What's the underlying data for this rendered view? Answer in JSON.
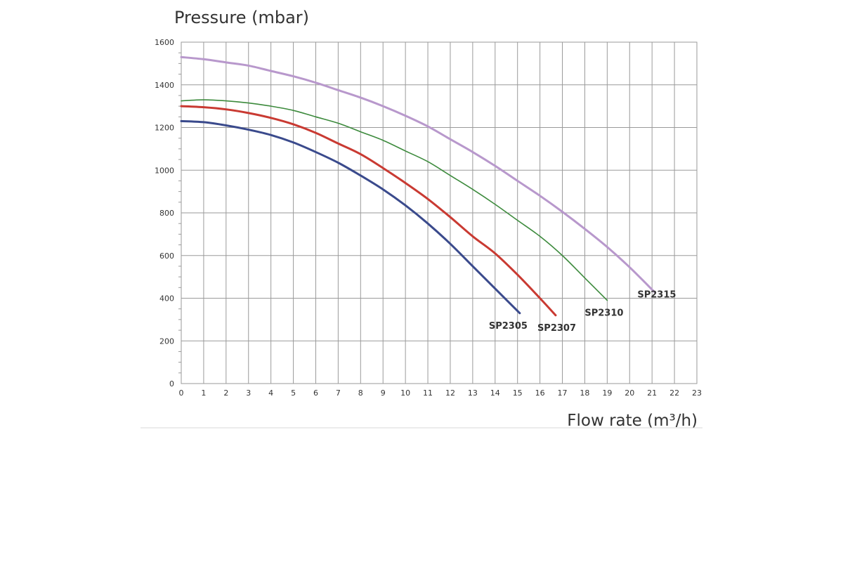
{
  "chart_data": {
    "type": "line",
    "xlabel": "Flow rate (m³/h)",
    "ylabel": "Pressure (mbar)",
    "xlim": [
      0,
      23
    ],
    "ylim": [
      0,
      1600
    ],
    "xticks": [
      0,
      1,
      2,
      3,
      4,
      5,
      6,
      7,
      8,
      9,
      10,
      11,
      12,
      13,
      14,
      15,
      16,
      17,
      18,
      19,
      20,
      21,
      22,
      23
    ],
    "yticks": [
      0,
      200,
      400,
      600,
      800,
      1000,
      1200,
      1400,
      1600
    ],
    "grid": true,
    "legend": "none",
    "series": [
      {
        "name": "SP2305",
        "color": "#3a4a8c",
        "x": [
          0,
          1,
          2,
          3,
          4,
          5,
          6,
          7,
          8,
          9,
          10,
          11,
          12,
          13,
          14,
          15.1
        ],
        "y": [
          1230,
          1225,
          1210,
          1190,
          1165,
          1130,
          1085,
          1035,
          975,
          910,
          835,
          750,
          655,
          550,
          445,
          330
        ]
      },
      {
        "name": "SP2307",
        "color": "#c93a32",
        "x": [
          0,
          1,
          2,
          3,
          4,
          5,
          6,
          7,
          8,
          9,
          10,
          11,
          12,
          13,
          14,
          15,
          16,
          16.7
        ],
        "y": [
          1300,
          1295,
          1285,
          1268,
          1245,
          1215,
          1175,
          1125,
          1075,
          1010,
          940,
          865,
          780,
          690,
          610,
          510,
          400,
          320
        ]
      },
      {
        "name": "SP2310",
        "color": "#3c8a3c",
        "x": [
          0,
          1,
          2,
          3,
          4,
          5,
          6,
          7,
          8,
          9,
          10,
          11,
          12,
          13,
          14,
          15,
          16,
          17,
          18,
          19
        ],
        "y": [
          1325,
          1330,
          1325,
          1315,
          1300,
          1280,
          1250,
          1220,
          1180,
          1140,
          1090,
          1040,
          975,
          910,
          840,
          765,
          690,
          600,
          495,
          390
        ]
      },
      {
        "name": "SP2315",
        "color": "#b898cc",
        "x": [
          0,
          1,
          2,
          3,
          4,
          5,
          6,
          7,
          8,
          9,
          10,
          11,
          12,
          13,
          14,
          15,
          16,
          17,
          18,
          19,
          20,
          21.1
        ],
        "y": [
          1530,
          1520,
          1505,
          1490,
          1465,
          1440,
          1410,
          1375,
          1340,
          1300,
          1255,
          1205,
          1145,
          1085,
          1020,
          950,
          880,
          805,
          725,
          640,
          545,
          430
        ]
      }
    ]
  }
}
